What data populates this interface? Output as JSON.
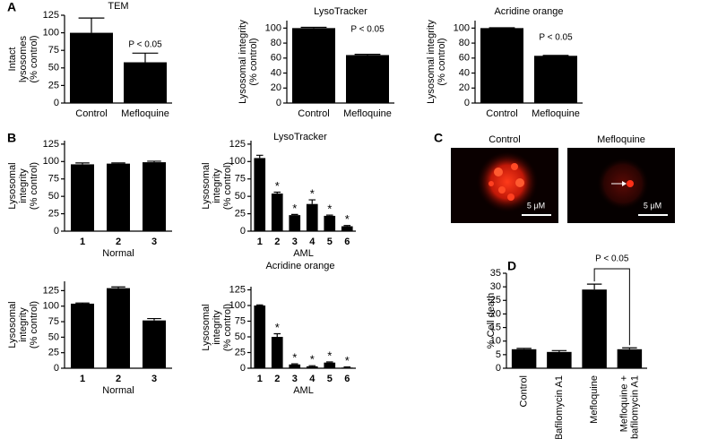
{
  "panel_letters": [
    "A",
    "B",
    "C",
    "D"
  ],
  "section_titles": [
    "LysoTracker",
    "Acridine orange"
  ],
  "images": {
    "titles": [
      "Control",
      "Mefloquine"
    ],
    "scale_bar": "5 μM"
  },
  "chart_data": [
    {
      "type": "bar",
      "title": "TEM",
      "ylabel": [
        "Intact",
        "lysosomes",
        "(% control)"
      ],
      "categories": [
        "Control",
        "Mefloquine"
      ],
      "values": [
        100,
        58
      ],
      "errors": [
        21,
        13
      ],
      "color": "#000000",
      "ylim": [
        0,
        125
      ],
      "yticks": [
        0,
        25,
        50,
        75,
        100,
        125
      ],
      "annotation": "P < 0.05"
    },
    {
      "type": "bar",
      "title": "LysoTracker",
      "ylabel": [
        "Lysosomal integrity",
        "(% control)"
      ],
      "categories": [
        "Control",
        "Mefloquine"
      ],
      "values": [
        100,
        64
      ],
      "errors": [
        1,
        1
      ],
      "color": "#000000",
      "ylim": [
        0,
        110
      ],
      "yticks": [
        0,
        20,
        40,
        60,
        80,
        100
      ],
      "annotation": "P < 0.05"
    },
    {
      "type": "bar",
      "title": "Acridine orange",
      "ylabel": [
        "Lysosomal integrity",
        "(% control)"
      ],
      "categories": [
        "Control",
        "Mefloquine"
      ],
      "values": [
        100,
        63
      ],
      "errors": [
        0.5,
        0.5
      ],
      "color": "#000000",
      "ylim": [
        0,
        110
      ],
      "yticks": [
        0,
        20,
        40,
        60,
        80,
        100
      ],
      "annotation": "P < 0.05"
    },
    {
      "type": "bar",
      "ylabel": [
        "Lysosomal",
        "integrity",
        "(% control)"
      ],
      "xlabel": "Normal",
      "categories": [
        "1",
        "2",
        "3"
      ],
      "values": [
        96,
        97,
        99
      ],
      "errors": [
        2,
        1,
        1.5
      ],
      "color": "#000000",
      "ylim": [
        0,
        130
      ],
      "yticks": [
        0,
        25,
        50,
        75,
        100,
        125
      ]
    },
    {
      "type": "bar",
      "ylabel": [
        "Lysosomal",
        "integrity",
        "(% control)"
      ],
      "xlabel": "AML",
      "categories": [
        "1",
        "2",
        "3",
        "4",
        "5",
        "6"
      ],
      "values": [
        105,
        54,
        23,
        39,
        22,
        7
      ],
      "errors": [
        4,
        2,
        1,
        6,
        1,
        1
      ],
      "significance": [
        null,
        "*",
        "*",
        "*",
        "*",
        "*"
      ],
      "color": "#000000",
      "ylim": [
        0,
        130
      ],
      "yticks": [
        0,
        25,
        50,
        75,
        100,
        125
      ]
    },
    {
      "type": "bar",
      "ylabel": [
        "Lysosomal",
        "integrity",
        "(% control)"
      ],
      "xlabel": "Normal",
      "categories": [
        "1",
        "2",
        "3"
      ],
      "values": [
        104,
        129,
        77
      ],
      "errors": [
        1,
        2,
        3
      ],
      "color": "#000000",
      "ylim": [
        0,
        140
      ],
      "yticks": [
        0,
        25,
        50,
        75,
        100,
        125
      ]
    },
    {
      "type": "bar",
      "ylabel": [
        "Lysosomal",
        "integrity",
        "(% control)"
      ],
      "xlabel": "AML",
      "categories": [
        "1",
        "2",
        "3",
        "4",
        "5",
        "6"
      ],
      "values": [
        100,
        50,
        6,
        3,
        9,
        1
      ],
      "errors": [
        1,
        5,
        1,
        1,
        1,
        1
      ],
      "significance": [
        null,
        "*",
        "*",
        "*",
        "*",
        "*"
      ],
      "color": "#000000",
      "ylim": [
        0,
        130
      ],
      "yticks": [
        0,
        25,
        50,
        75,
        100,
        125
      ]
    },
    {
      "type": "bar",
      "ylabel": [
        "% Cell death"
      ],
      "categories": [
        "Control",
        "Bafilomycin A1",
        "Mefloquine",
        [
          "Mefloquine +",
          "bafilomycin A1"
        ]
      ],
      "values": [
        7,
        6,
        29,
        7
      ],
      "errors": [
        0.3,
        0.5,
        2,
        0.5
      ],
      "color": "#000000",
      "ylim": [
        0,
        35
      ],
      "yticks": [
        0,
        5,
        10,
        15,
        20,
        25,
        30,
        35
      ],
      "annotation": "P < 0.05"
    }
  ]
}
